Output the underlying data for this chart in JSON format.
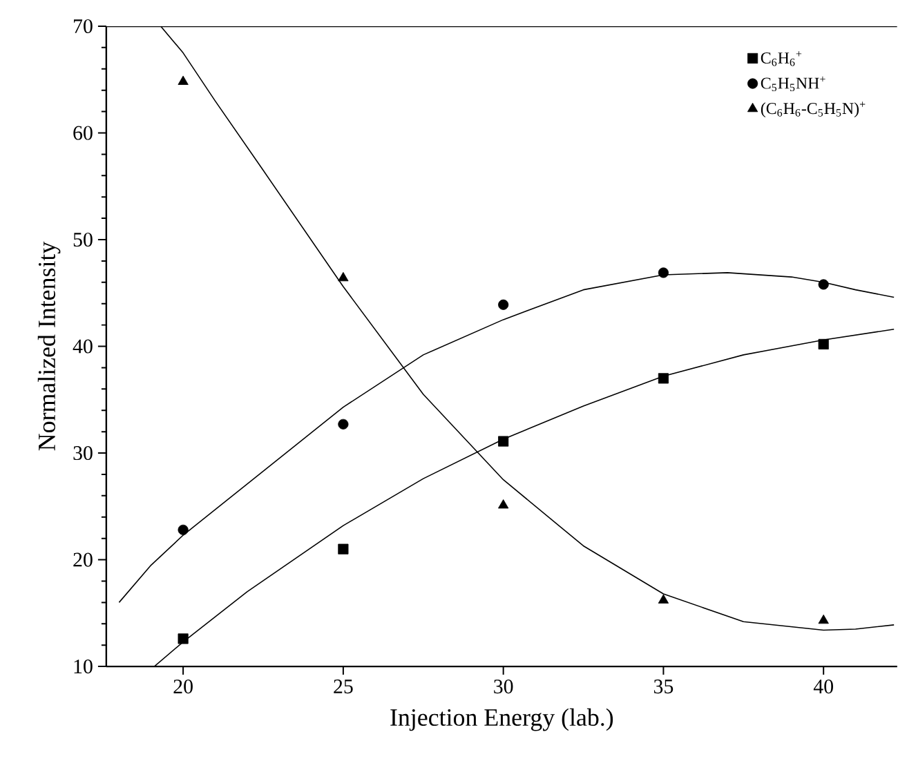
{
  "chart_data": {
    "type": "scatter",
    "xlabel": "Injection Energy (lab.)",
    "ylabel": "Normalized Intensity",
    "xlim": [
      17.6,
      42.3
    ],
    "ylim": [
      10,
      70
    ],
    "xticks": [
      20,
      25,
      30,
      35,
      40
    ],
    "yticks": [
      10,
      20,
      30,
      40,
      50,
      60,
      70
    ],
    "legend": "top right",
    "grid": false,
    "series": [
      {
        "name": "C$_{6}$H$_{6}$$^{+}$",
        "color": "#000000",
        "marker": "square",
        "x": [
          20,
          25,
          30,
          35,
          40
        ],
        "values": [
          12.6,
          21,
          31.1,
          37,
          40.2
        ]
      },
      {
        "name": "C$_{5}$H$_{5}$NH$^{+}$",
        "color": "#000000",
        "marker": "circle",
        "x": [
          20,
          25,
          30,
          35,
          40
        ],
        "values": [
          22.8,
          32.7,
          43.9,
          46.9,
          45.8
        ]
      },
      {
        "name": "(C$_{6}$H$_{6}$-C$_{5}$H$_{5}$N)$^{+}$",
        "color": "#000000",
        "marker": "triangle",
        "x": [
          20,
          25,
          30,
          35,
          40
        ],
        "values": [
          64.8,
          46.4,
          25.1,
          16.2,
          14.3
        ]
      },
      {
        "type": "line",
        "color": "#000000",
        "marker": "none",
        "line_style": "solid",
        "x": [
          19.1,
          20,
          22,
          25,
          27.5,
          30,
          32.5,
          35,
          37.5,
          40,
          42.2
        ],
        "values": [
          10,
          12.3,
          17,
          23.2,
          27.6,
          31.3,
          34.4,
          37.2,
          39.2,
          40.6,
          41.6
        ]
      },
      {
        "type": "line",
        "color": "#000000",
        "marker": "none",
        "line_style": "solid",
        "x": [
          18,
          19,
          20,
          22.5,
          25,
          27.5,
          30,
          32.5,
          35,
          37,
          39,
          40,
          41,
          42.2
        ],
        "values": [
          16,
          19.5,
          22.3,
          28.3,
          34.3,
          39.2,
          42.5,
          45.3,
          46.7,
          46.9,
          46.5,
          46,
          45.3,
          44.6
        ]
      },
      {
        "type": "line",
        "color": "#000000",
        "marker": "none",
        "line_style": "solid",
        "x": [
          19.3,
          20,
          21,
          22.5,
          25,
          27.5,
          30,
          32.5,
          35,
          37.5,
          40,
          41,
          42.2
        ],
        "values": [
          70,
          67.5,
          63,
          56.5,
          45.6,
          35.5,
          27.5,
          21.3,
          16.8,
          14.2,
          13.4,
          13.5,
          13.9
        ]
      }
    ]
  }
}
